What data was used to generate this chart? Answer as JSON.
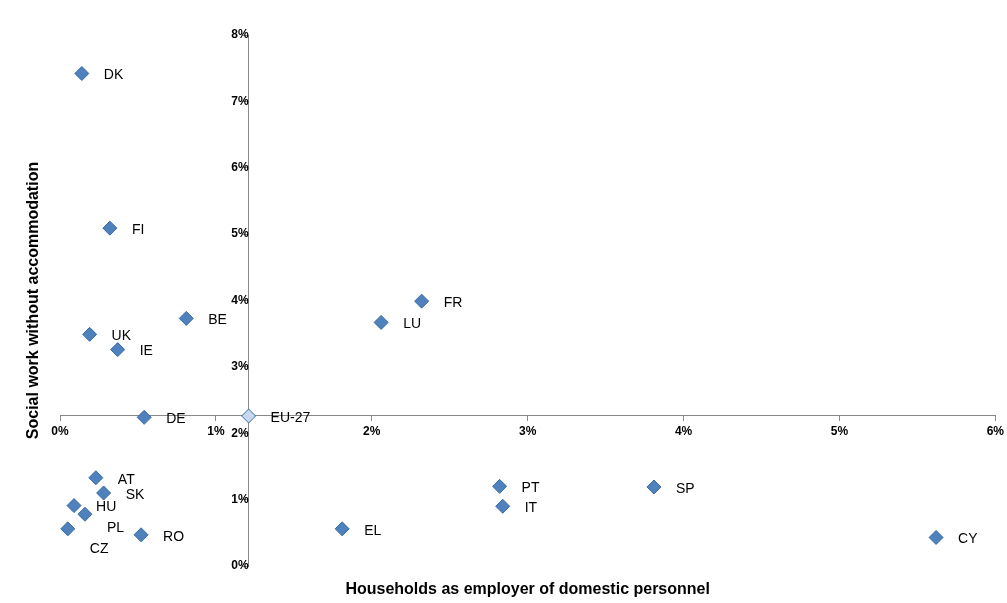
{
  "chart_data": {
    "type": "scatter",
    "xlabel": "Households as employer of domestic personnel",
    "ylabel": "Social work without accommodation",
    "xlim": [
      0,
      6
    ],
    "xticks": [
      {
        "value": 0,
        "label": "0%"
      },
      {
        "value": 1,
        "label": "1%"
      },
      {
        "value": 2,
        "label": "2%"
      },
      {
        "value": 3,
        "label": "3%"
      },
      {
        "value": 4,
        "label": "4%"
      },
      {
        "value": 5,
        "label": "5%"
      },
      {
        "value": 6,
        "label": "6%"
      }
    ],
    "ylim": [
      0,
      8
    ],
    "yticks": [
      {
        "value": 0,
        "label": "0%"
      },
      {
        "value": 1,
        "label": "1%"
      },
      {
        "value": 2,
        "label": "2%"
      },
      {
        "value": 3,
        "label": "3%"
      },
      {
        "value": 4,
        "label": "4%"
      },
      {
        "value": 5,
        "label": "5%"
      },
      {
        "value": 6,
        "label": "6%"
      },
      {
        "value": 7,
        "label": "7%"
      },
      {
        "value": 8,
        "label": "8%"
      }
    ],
    "grid": false,
    "legend": false,
    "marker": "diamond",
    "series": [
      {
        "color": "#4f81bd",
        "x": [
          0.14,
          0.32,
          0.81,
          0.19,
          0.37,
          0.54,
          2.32,
          2.06,
          0.23,
          0.28,
          0.09,
          0.16,
          0.05,
          0.52,
          1.81,
          2.82,
          2.84,
          3.81,
          5.62
        ],
        "values": [
          7.42,
          5.09,
          3.73,
          3.49,
          3.26,
          2.24,
          3.99,
          3.67,
          1.33,
          1.1,
          0.91,
          0.78,
          0.56,
          0.47,
          0.56,
          1.2,
          0.9,
          1.19,
          0.43
        ]
      },
      {
        "color": "#c6d9f1",
        "x": [
          1.21
        ],
        "values": [
          2.26
        ]
      }
    ],
    "annotations": [
      {
        "text": "DK",
        "x": 0.14,
        "y": 7.42
      },
      {
        "text": "FI",
        "x": 0.32,
        "y": 5.09
      },
      {
        "text": "BE",
        "x": 0.81,
        "y": 3.73
      },
      {
        "text": "UK",
        "x": 0.19,
        "y": 3.49
      },
      {
        "text": "IE",
        "x": 0.37,
        "y": 3.26
      },
      {
        "text": "DE",
        "x": 0.54,
        "y": 2.24
      },
      {
        "text": "FR",
        "x": 2.32,
        "y": 3.99
      },
      {
        "text": "LU",
        "x": 2.06,
        "y": 3.67
      },
      {
        "text": "EU-27",
        "x": 1.21,
        "y": 2.26
      },
      {
        "text": "AT",
        "x": 0.23,
        "y": 1.33
      },
      {
        "text": "SK",
        "x": 0.28,
        "y": 1.1
      },
      {
        "text": "HU",
        "x": 0.09,
        "y": 0.91
      },
      {
        "text": "PL",
        "x": 0.16,
        "y": 0.78
      },
      {
        "text": "CZ",
        "x": 0.05,
        "y": 0.56
      },
      {
        "text": "RO",
        "x": 0.52,
        "y": 0.47
      },
      {
        "text": "EL",
        "x": 1.81,
        "y": 0.56
      },
      {
        "text": "PT",
        "x": 2.82,
        "y": 1.2
      },
      {
        "text": "IT",
        "x": 2.84,
        "y": 0.9
      },
      {
        "text": "SP",
        "x": 3.81,
        "y": 1.19
      },
      {
        "text": "CY",
        "x": 5.62,
        "y": 0.43
      }
    ]
  }
}
